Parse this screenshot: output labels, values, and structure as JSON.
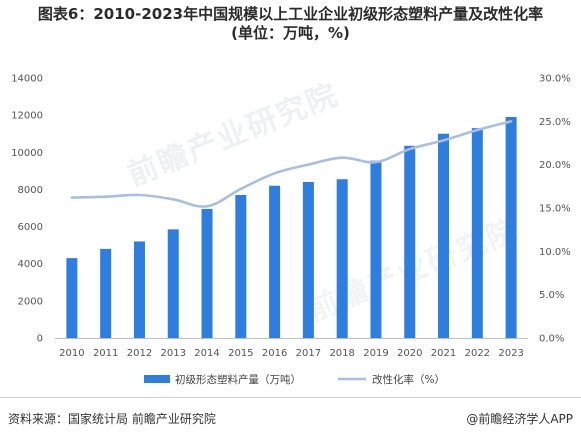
{
  "title": {
    "line1": "图表6：2010-2023年中国规模以上工业企业初级形态塑料产量及改性化率",
    "line2": "(单位：万吨，%)"
  },
  "watermark": "前瞻产业研究院",
  "footer": {
    "source": "资料来源：国家统计局 前瞻产业研究院",
    "brand": "@前瞻经济学人APP"
  },
  "chart_data": {
    "type": "bar",
    "categories": [
      "2010",
      "2011",
      "2012",
      "2013",
      "2014",
      "2015",
      "2016",
      "2017",
      "2018",
      "2019",
      "2020",
      "2021",
      "2022",
      "2023"
    ],
    "series": [
      {
        "name": "初级形态塑料产量（万吨）",
        "type": "bar",
        "axis": "left",
        "color": "#2e7de0",
        "values": [
          4300,
          4800,
          5200,
          5850,
          6950,
          7700,
          8200,
          8400,
          8550,
          9550,
          10350,
          11000,
          11300,
          11900
        ]
      },
      {
        "name": "改性化率（%）",
        "type": "line",
        "axis": "right",
        "color": "#a9bfe2",
        "values": [
          16.2,
          16.3,
          16.5,
          16.0,
          15.2,
          17.2,
          19.0,
          20.0,
          20.8,
          20.3,
          21.8,
          22.8,
          24.0,
          25.0
        ]
      }
    ],
    "y_left": {
      "min": 0,
      "max": 14000,
      "ticks": [
        "0",
        "2000",
        "4000",
        "6000",
        "8000",
        "10000",
        "12000",
        "14000"
      ]
    },
    "y_right": {
      "min": 0,
      "max": 30,
      "ticks": [
        "0.0%",
        "5.0%",
        "10.0%",
        "15.0%",
        "20.0%",
        "25.0%",
        "30.0%"
      ]
    },
    "grid": false,
    "legend": "bottom"
  }
}
